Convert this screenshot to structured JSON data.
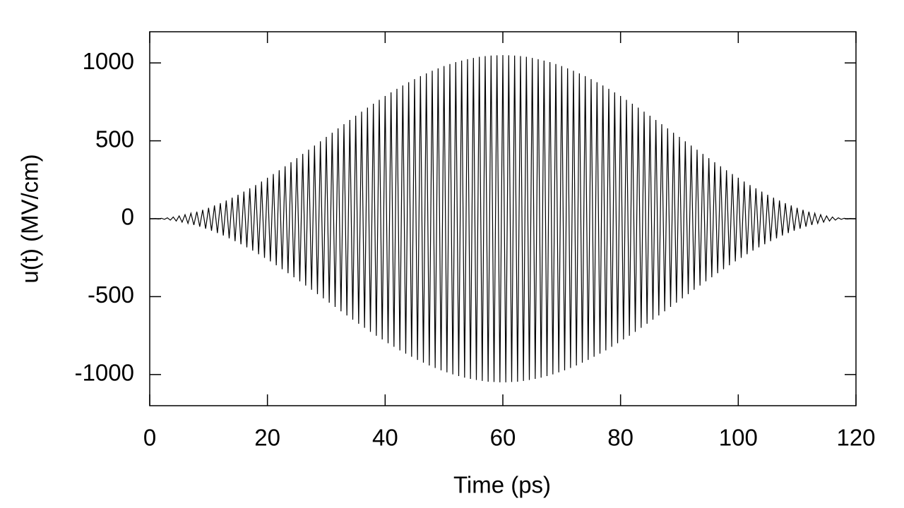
{
  "chart_data": {
    "type": "line",
    "xlabel": "Time (ps)",
    "ylabel": "u(t) (MV/cm)",
    "color": "#000000",
    "xlim": [
      0,
      120
    ],
    "ylim": [
      -1200,
      1200
    ],
    "xticks": [
      0,
      20,
      40,
      60,
      80,
      100,
      120
    ],
    "yticks": [
      -1000,
      -500,
      0,
      500,
      1000
    ],
    "x": [
      0,
      0.5,
      1,
      1.5,
      2,
      2.5,
      3,
      3.5,
      4,
      4.5,
      5,
      5.5,
      6,
      6.5,
      7,
      7.5,
      8,
      8.5,
      9,
      9.5,
      10,
      10.5,
      11,
      11.5,
      12,
      12.5,
      13,
      13.5,
      14,
      14.5,
      15,
      15.5,
      16,
      16.5,
      17,
      17.5,
      18,
      18.5,
      19,
      19.5,
      20,
      20.5,
      21,
      21.5,
      22,
      22.5,
      23,
      23.5,
      24,
      24.5,
      25,
      25.5,
      26,
      26.5,
      27,
      27.5,
      28,
      28.5,
      29,
      29.5,
      30,
      30.5,
      31,
      31.5,
      32,
      32.5,
      33,
      33.5,
      34,
      34.5,
      35,
      35.5,
      36,
      36.5,
      37,
      37.5,
      38,
      38.5,
      39,
      39.5,
      40,
      40.5,
      41,
      41.5,
      42,
      42.5,
      43,
      43.5,
      44,
      44.5,
      45,
      45.5,
      46,
      46.5,
      47,
      47.5,
      48,
      48.5,
      49,
      49.5,
      50,
      50.5,
      51,
      51.5,
      52,
      52.5,
      53,
      53.5,
      54,
      54.5,
      55,
      55.5,
      56,
      56.5,
      57,
      57.5,
      58,
      58.5,
      59,
      59.5,
      60,
      60.5,
      61,
      61.5,
      62,
      62.5,
      63,
      63.5,
      64,
      64.5,
      65,
      65.5,
      66,
      66.5,
      67,
      67.5,
      68,
      68.5,
      69,
      69.5,
      70,
      70.5,
      71,
      71.5,
      72,
      72.5,
      73,
      73.5,
      74,
      74.5,
      75,
      75.5,
      76,
      76.5,
      77,
      77.5,
      78,
      78.5,
      79,
      79.5,
      80,
      80.5,
      81,
      81.5,
      82,
      82.5,
      83,
      83.5,
      84,
      84.5,
      85,
      85.5,
      86,
      86.5,
      87,
      87.5,
      88,
      88.5,
      89,
      89.5,
      90,
      90.5,
      91,
      91.5,
      92,
      92.5,
      93,
      93.5,
      94,
      94.5,
      95,
      95.5,
      96,
      96.5,
      97,
      97.5,
      98,
      98.5,
      99,
      99.5,
      100,
      100.5,
      101,
      101.5,
      102,
      102.5,
      103,
      103.5,
      104,
      104.5,
      105,
      105.5,
      106,
      106.5,
      107,
      107.5,
      108,
      108.5,
      109,
      109.5,
      110,
      110.5,
      111,
      111.5,
      112,
      112.5,
      113,
      113.5,
      114,
      114.5,
      115,
      115.5,
      116,
      116.5,
      117,
      117.5,
      118,
      118.5,
      119,
      119.5,
      120
    ],
    "values": [
      0,
      0,
      1,
      -2,
      3,
      -4,
      6,
      -9,
      11,
      -15,
      18,
      -22,
      26,
      -30,
      35,
      -40,
      45,
      -51,
      57,
      -64,
      70,
      -77,
      85,
      -92,
      100,
      -108,
      117,
      -126,
      135,
      -144,
      154,
      -164,
      174,
      -184,
      195,
      -205,
      216,
      -228,
      239,
      -251,
      263,
      -274,
      287,
      -299,
      311,
      -324,
      337,
      -350,
      363,
      -376,
      389,
      -402,
      416,
      -429,
      443,
      -456,
      470,
      -484,
      497,
      -511,
      525,
      -539,
      552,
      -566,
      580,
      -594,
      607,
      -621,
      634,
      -648,
      661,
      -674,
      687,
      -700,
      713,
      -726,
      738,
      -751,
      763,
      -775,
      788,
      -799,
      811,
      -822,
      834,
      -845,
      855,
      -866,
      876,
      -886,
      896,
      -906,
      915,
      -924,
      933,
      -942,
      950,
      -958,
      965,
      -973,
      980,
      -986,
      993,
      -999,
      1005,
      -1010,
      1015,
      -1020,
      1024,
      -1028,
      1032,
      -1035,
      1039,
      -1041,
      1044,
      -1046,
      1047,
      -1048,
      1049,
      -1050,
      1050,
      -1050,
      1049,
      -1048,
      1047,
      -1046,
      1044,
      -1041,
      1039,
      -1035,
      1032,
      -1028,
      1024,
      -1020,
      1015,
      -1010,
      1005,
      -999,
      993,
      -986,
      980,
      -973,
      965,
      -958,
      950,
      -942,
      933,
      -924,
      915,
      -906,
      896,
      -886,
      876,
      -866,
      855,
      -845,
      834,
      -822,
      811,
      -799,
      788,
      -775,
      763,
      -751,
      738,
      -726,
      713,
      -700,
      687,
      -674,
      661,
      -648,
      634,
      -621,
      607,
      -594,
      580,
      -566,
      552,
      -539,
      525,
      -511,
      497,
      -484,
      470,
      -456,
      443,
      -429,
      416,
      -402,
      389,
      -376,
      363,
      -350,
      337,
      -324,
      311,
      -299,
      287,
      -274,
      263,
      -251,
      239,
      -228,
      216,
      -205,
      195,
      -184,
      174,
      -164,
      154,
      -144,
      135,
      -126,
      117,
      -108,
      100,
      -92,
      85,
      -77,
      70,
      -64,
      57,
      -51,
      45,
      -40,
      35,
      -30,
      26,
      -22,
      18,
      -15,
      11,
      -9,
      6,
      -4,
      3,
      -2,
      1,
      0,
      0
    ]
  }
}
